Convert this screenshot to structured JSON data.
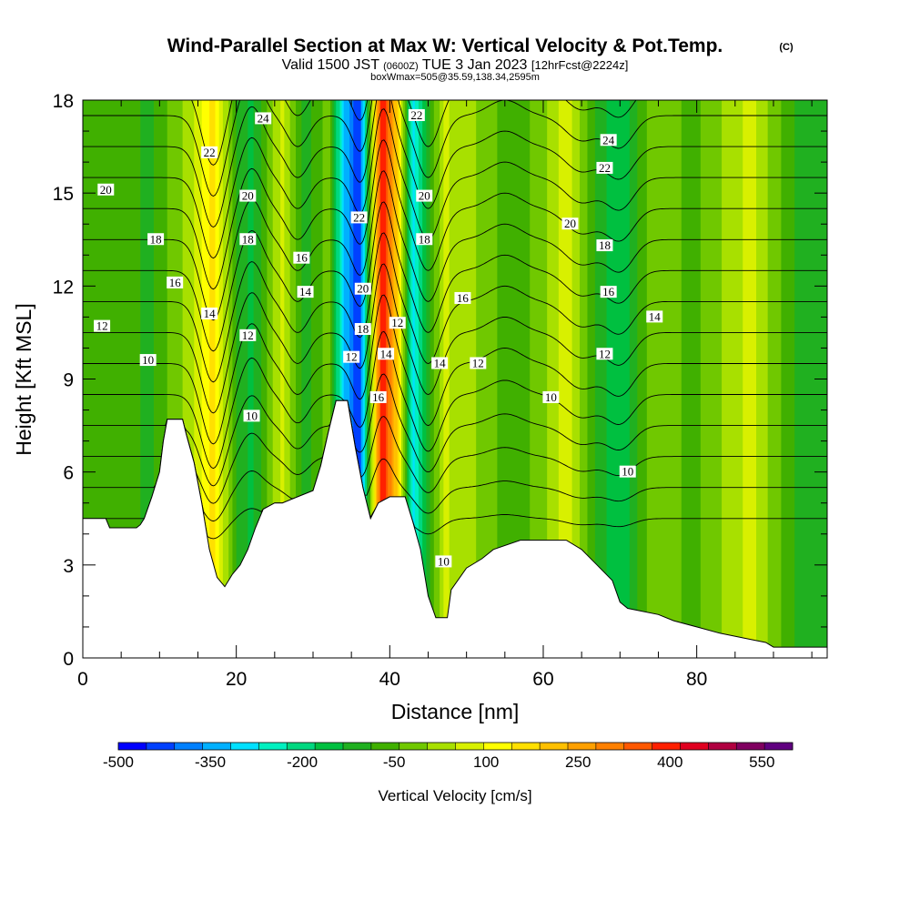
{
  "chart_data": {
    "type": "heatmap",
    "title": "Wind-Parallel Section at Max W: Vertical Velocity & Pot.Temp.",
    "title_mark": "(C)",
    "subtitle_parts": [
      "Valid 1500 JST",
      "(0600Z)",
      "TUE 3 Jan 2023",
      "[12hrFcst@2224z]"
    ],
    "subtitle2": "boxWmax=505@35.59,138.34,2595m",
    "xlabel": "Distance [nm]",
    "ylabel": "Height [Kft MSL]",
    "xlim": [
      0,
      97
    ],
    "ylim": [
      0,
      18
    ],
    "x_ticks": [
      0,
      20,
      40,
      60,
      80
    ],
    "y_ticks": [
      0,
      3,
      6,
      9,
      12,
      15,
      18
    ],
    "colorbar": {
      "title": "Vertical Velocity [cm/s]",
      "labels": [
        "-500",
        "-350",
        "-200",
        "-50",
        "100",
        "250",
        "400",
        "550"
      ],
      "label_values": [
        -500,
        -350,
        -200,
        -50,
        100,
        250,
        400,
        550
      ],
      "min": -500,
      "max": 600,
      "step": 50,
      "colors": [
        "#0000ff",
        "#0040ff",
        "#0080ff",
        "#00b0ff",
        "#00e0ff",
        "#00f0c0",
        "#00d880",
        "#00c040",
        "#20b020",
        "#40b000",
        "#70c800",
        "#a8e000",
        "#d8f000",
        "#ffff00",
        "#ffe000",
        "#ffc000",
        "#ffa000",
        "#ff8000",
        "#ff5800",
        "#ff2000",
        "#e00020",
        "#b00040",
        "#800060",
        "#600080"
      ]
    },
    "vertical_velocity_bands": [
      {
        "x": 2,
        "w": -30
      },
      {
        "x": 9,
        "w": -55
      },
      {
        "x": 14,
        "w": 80
      },
      {
        "x": 17,
        "w": 220
      },
      {
        "x": 20,
        "w": -50
      },
      {
        "x": 22,
        "w": -120
      },
      {
        "x": 26,
        "w": 120
      },
      {
        "x": 29,
        "w": -80
      },
      {
        "x": 32,
        "w": 30
      },
      {
        "x": 34,
        "w": -300
      },
      {
        "x": 36,
        "w": -450
      },
      {
        "x": 39,
        "w": 500
      },
      {
        "x": 41,
        "w": 250
      },
      {
        "x": 43,
        "w": -280
      },
      {
        "x": 47,
        "w": 110
      },
      {
        "x": 52,
        "w": 40
      },
      {
        "x": 56,
        "w": -40
      },
      {
        "x": 60,
        "w": 30
      },
      {
        "x": 63,
        "w": 130
      },
      {
        "x": 67,
        "w": -60
      },
      {
        "x": 70,
        "w": -150
      },
      {
        "x": 74,
        "w": 20
      },
      {
        "x": 80,
        "w": -10
      },
      {
        "x": 87,
        "w": 120
      },
      {
        "x": 93,
        "w": -60
      }
    ],
    "terrain": [
      {
        "x": 0,
        "h": 4.5
      },
      {
        "x": 3,
        "h": 4.5
      },
      {
        "x": 3.5,
        "h": 4.2
      },
      {
        "x": 7,
        "h": 4.2
      },
      {
        "x": 7.5,
        "h": 4.3
      },
      {
        "x": 8,
        "h": 4.5
      },
      {
        "x": 9,
        "h": 5.2
      },
      {
        "x": 10,
        "h": 6.0
      },
      {
        "x": 10.5,
        "h": 7.0
      },
      {
        "x": 11,
        "h": 7.7
      },
      {
        "x": 13,
        "h": 7.7
      },
      {
        "x": 13.5,
        "h": 7.2
      },
      {
        "x": 14.5,
        "h": 6.3
      },
      {
        "x": 15.5,
        "h": 5.0
      },
      {
        "x": 16.5,
        "h": 3.5
      },
      {
        "x": 17.5,
        "h": 2.6
      },
      {
        "x": 18.5,
        "h": 2.3
      },
      {
        "x": 19.5,
        "h": 2.7
      },
      {
        "x": 20.5,
        "h": 3.0
      },
      {
        "x": 21.5,
        "h": 3.5
      },
      {
        "x": 22.5,
        "h": 4.2
      },
      {
        "x": 23.5,
        "h": 4.8
      },
      {
        "x": 25,
        "h": 5.0
      },
      {
        "x": 26,
        "h": 5.0
      },
      {
        "x": 27,
        "h": 5.1
      },
      {
        "x": 30,
        "h": 5.4
      },
      {
        "x": 31,
        "h": 6.2
      },
      {
        "x": 32,
        "h": 7.3
      },
      {
        "x": 33,
        "h": 8.3
      },
      {
        "x": 34.5,
        "h": 8.3
      },
      {
        "x": 35.5,
        "h": 6.8
      },
      {
        "x": 36.5,
        "h": 5.5
      },
      {
        "x": 37.5,
        "h": 4.5
      },
      {
        "x": 38.5,
        "h": 5.0
      },
      {
        "x": 40,
        "h": 5.2
      },
      {
        "x": 42,
        "h": 5.2
      },
      {
        "x": 43,
        "h": 4.4
      },
      {
        "x": 44,
        "h": 3.5
      },
      {
        "x": 45,
        "h": 2.0
      },
      {
        "x": 46,
        "h": 1.3
      },
      {
        "x": 47.5,
        "h": 1.3
      },
      {
        "x": 48,
        "h": 2.2
      },
      {
        "x": 50,
        "h": 2.9
      },
      {
        "x": 52,
        "h": 3.2
      },
      {
        "x": 53.5,
        "h": 3.5
      },
      {
        "x": 57,
        "h": 3.8
      },
      {
        "x": 63,
        "h": 3.8
      },
      {
        "x": 65,
        "h": 3.5
      },
      {
        "x": 67,
        "h": 3.0
      },
      {
        "x": 69,
        "h": 2.5
      },
      {
        "x": 70,
        "h": 1.8
      },
      {
        "x": 71,
        "h": 1.6
      },
      {
        "x": 75,
        "h": 1.4
      },
      {
        "x": 77,
        "h": 1.2
      },
      {
        "x": 80,
        "h": 1.0
      },
      {
        "x": 83,
        "h": 0.8
      },
      {
        "x": 87,
        "h": 0.6
      },
      {
        "x": 89,
        "h": 0.5
      },
      {
        "x": 90,
        "h": 0.35
      },
      {
        "x": 97,
        "h": 0.35
      }
    ],
    "theta_contour_base_heights": [
      4.5,
      5.5,
      6.5,
      7.5,
      8.5,
      9.5,
      10.5,
      11.5,
      12.5,
      13.5,
      14.5,
      15.5,
      16.5,
      17.5,
      18.5
    ],
    "theta_waves": [
      {
        "x": 17,
        "amp": 2.6,
        "width": 2.2
      },
      {
        "x": 22,
        "amp": -1.3,
        "width": 2.0
      },
      {
        "x": 28,
        "amp": 1.0,
        "width": 2.0
      },
      {
        "x": 36.5,
        "amp": 1.4,
        "width": 1.8
      },
      {
        "x": 39,
        "amp": -2.4,
        "width": 1.8
      },
      {
        "x": 45,
        "amp": 2.0,
        "width": 2.3
      },
      {
        "x": 55,
        "amp": -0.5,
        "width": 3.0
      },
      {
        "x": 65,
        "amp": 0.8,
        "width": 3.0
      },
      {
        "x": 70,
        "amp": 1.0,
        "width": 2.5
      }
    ],
    "contour_labels": [
      {
        "x": 3,
        "y": 15.1,
        "text": "20"
      },
      {
        "x": 9.5,
        "y": 13.5,
        "text": "18"
      },
      {
        "x": 12,
        "y": 12.1,
        "text": "16"
      },
      {
        "x": 2.5,
        "y": 10.7,
        "text": "12"
      },
      {
        "x": 8.5,
        "y": 9.6,
        "text": "10"
      },
      {
        "x": 23.5,
        "y": 17.4,
        "text": "24"
      },
      {
        "x": 16.5,
        "y": 16.3,
        "text": "22"
      },
      {
        "x": 21.5,
        "y": 14.9,
        "text": "20"
      },
      {
        "x": 21.5,
        "y": 13.5,
        "text": "18"
      },
      {
        "x": 28.5,
        "y": 12.9,
        "text": "16"
      },
      {
        "x": 29,
        "y": 11.8,
        "text": "14"
      },
      {
        "x": 16.5,
        "y": 11.1,
        "text": "14"
      },
      {
        "x": 21.5,
        "y": 10.4,
        "text": "12"
      },
      {
        "x": 22,
        "y": 7.8,
        "text": "10"
      },
      {
        "x": 36,
        "y": 14.2,
        "text": "22"
      },
      {
        "x": 36.5,
        "y": 11.9,
        "text": "20"
      },
      {
        "x": 36.5,
        "y": 10.6,
        "text": "18"
      },
      {
        "x": 35,
        "y": 9.7,
        "text": "12"
      },
      {
        "x": 39.5,
        "y": 9.8,
        "text": "14"
      },
      {
        "x": 38.5,
        "y": 8.4,
        "text": "16"
      },
      {
        "x": 41,
        "y": 10.8,
        "text": "12"
      },
      {
        "x": 43.5,
        "y": 17.5,
        "text": "22"
      },
      {
        "x": 44.5,
        "y": 14.9,
        "text": "20"
      },
      {
        "x": 44.5,
        "y": 13.5,
        "text": "18"
      },
      {
        "x": 49.5,
        "y": 11.6,
        "text": "16"
      },
      {
        "x": 46.5,
        "y": 9.5,
        "text": "14"
      },
      {
        "x": 51.5,
        "y": 9.5,
        "text": "12"
      },
      {
        "x": 61,
        "y": 8.4,
        "text": "10"
      },
      {
        "x": 47,
        "y": 3.1,
        "text": "10"
      },
      {
        "x": 68.5,
        "y": 16.7,
        "text": "24"
      },
      {
        "x": 68,
        "y": 15.8,
        "text": "22"
      },
      {
        "x": 63.5,
        "y": 14.0,
        "text": "20"
      },
      {
        "x": 68,
        "y": 13.3,
        "text": "18"
      },
      {
        "x": 68.5,
        "y": 11.8,
        "text": "16"
      },
      {
        "x": 74.5,
        "y": 11.0,
        "text": "14"
      },
      {
        "x": 68,
        "y": 9.8,
        "text": "12"
      },
      {
        "x": 71,
        "y": 6.0,
        "text": "10"
      }
    ]
  }
}
